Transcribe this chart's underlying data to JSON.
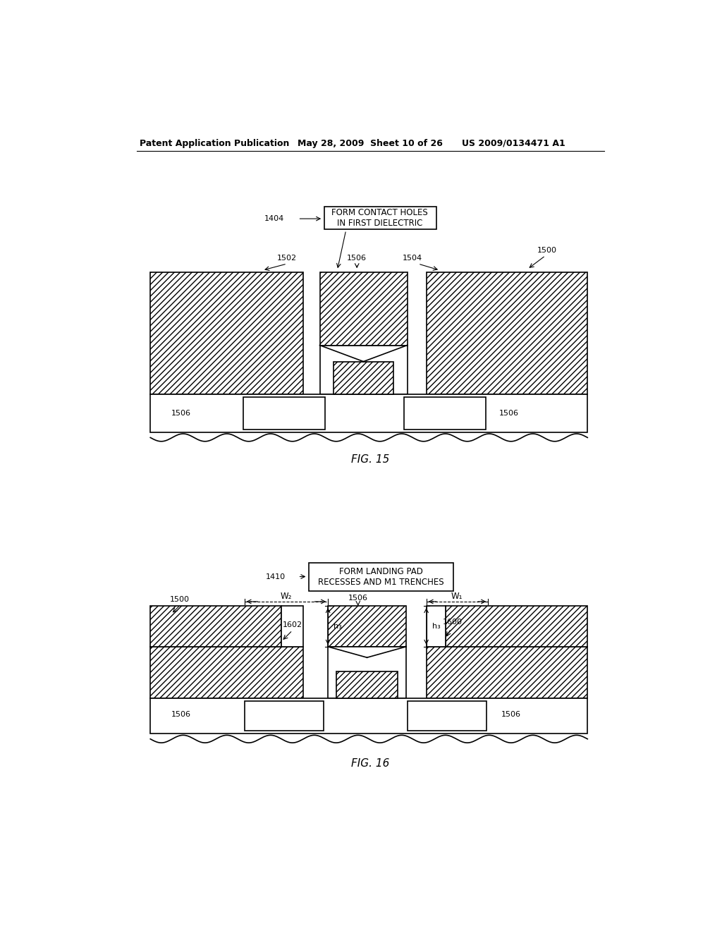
{
  "header_left": "Patent Application Publication",
  "header_mid": "May 28, 2009  Sheet 10 of 26",
  "header_right": "US 2009/0134471 A1",
  "fig15_label": "FIG. 15",
  "fig16_label": "FIG. 16",
  "bg_color": "#ffffff",
  "line_color": "#000000",
  "fig15_box_text": "FORM CONTACT HOLES\nIN FIRST DIELECTRIC",
  "fig16_box_text": "FORM LANDING PAD\nRECESSES AND M1 TRENCHES"
}
